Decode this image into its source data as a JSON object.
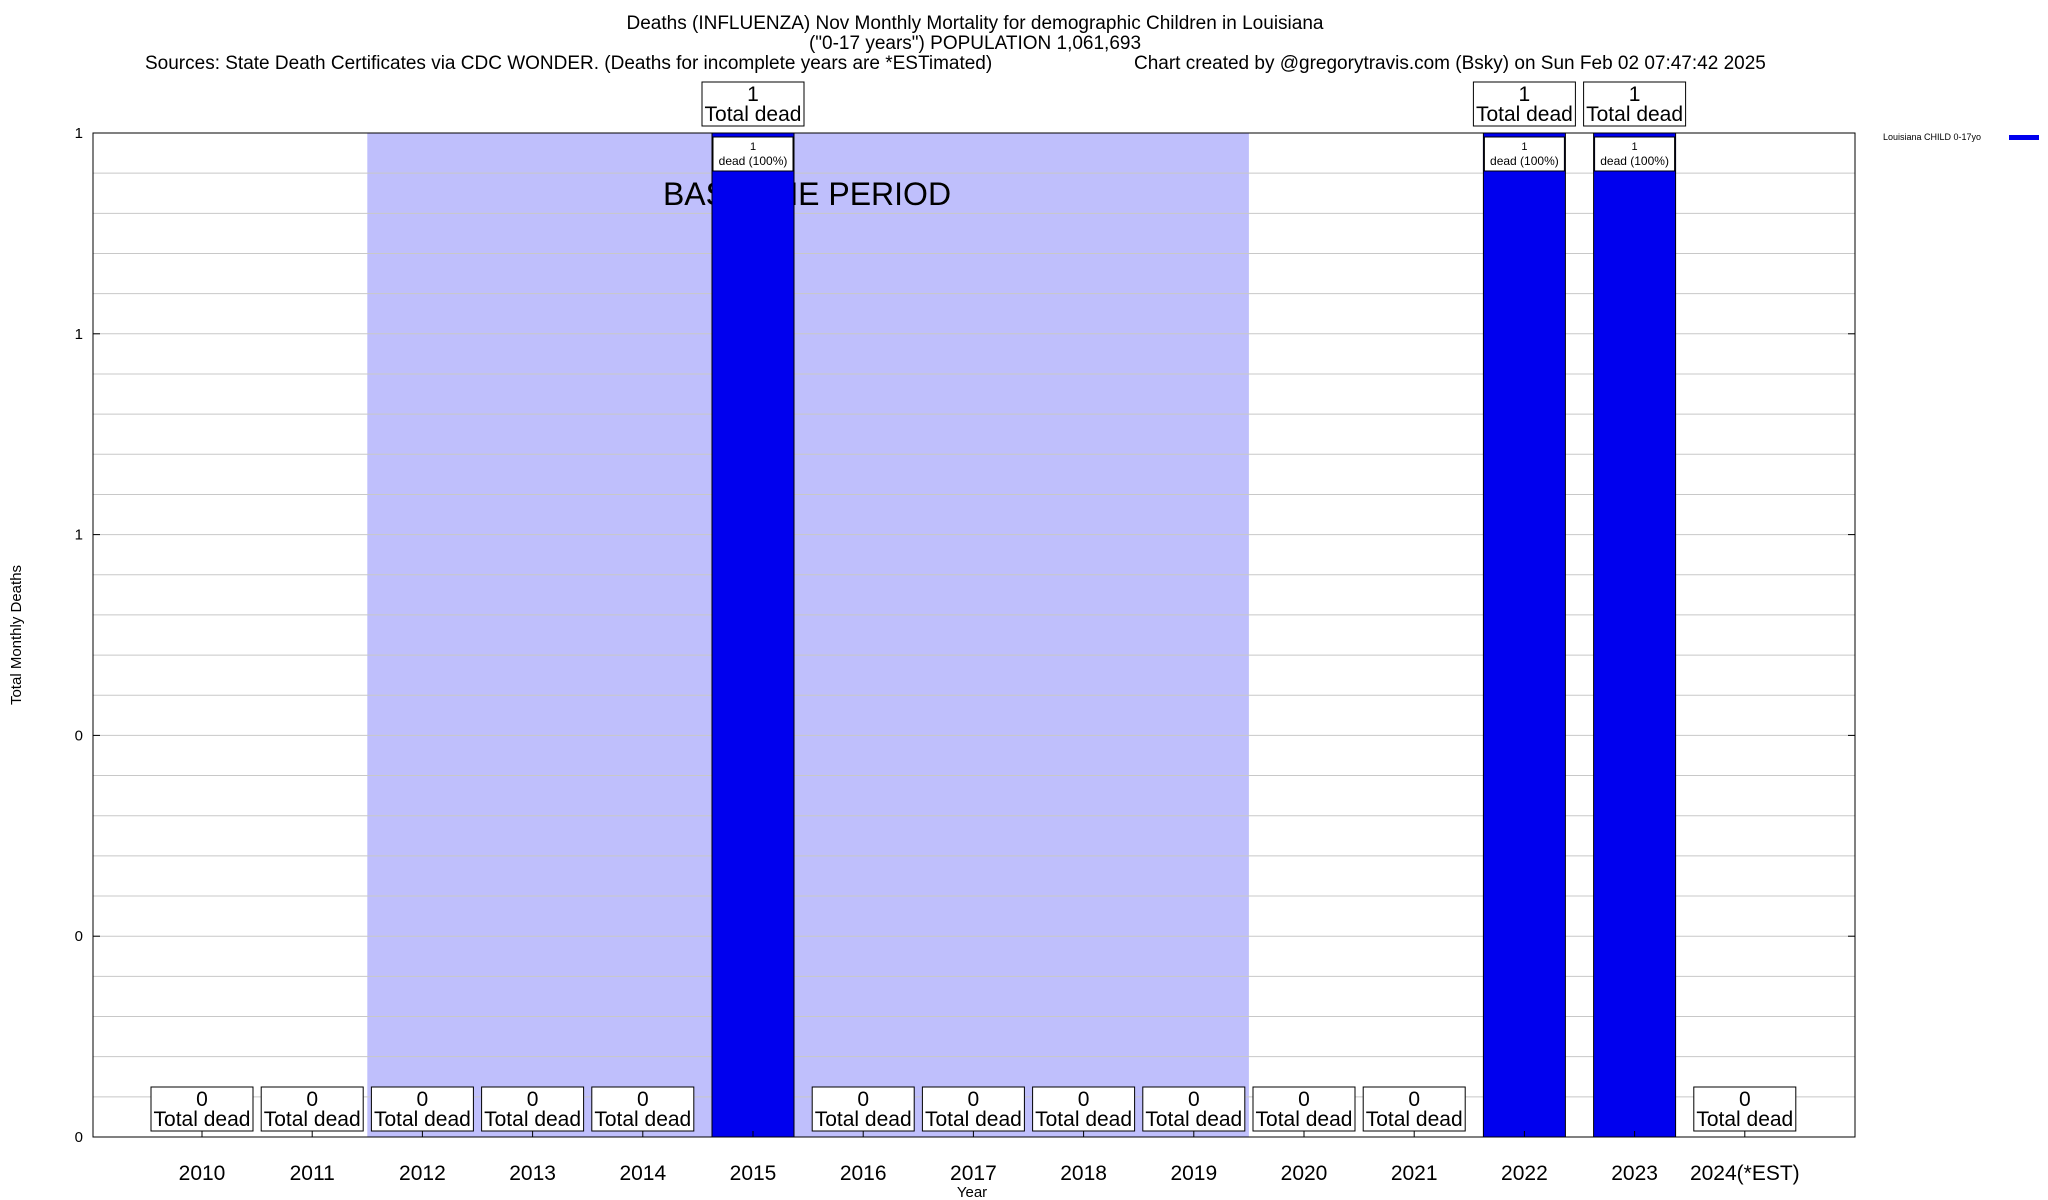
{
  "header": {
    "title_line1": "Deaths (INFLUENZA) Nov Monthly Mortality for demographic Children in Louisiana",
    "title_line2": "(\"0-17 years\") POPULATION 1,061,693",
    "sources": "Sources: State Death Certificates via CDC WONDER. (Deaths for incomplete years are *ESTimated)",
    "credit": "Chart created by @gregorytravis.com (Bsky) on Sun Feb 02 07:47:42 2025"
  },
  "chart_data": {
    "type": "bar",
    "xlabel": "Year",
    "ylabel": "Total Monthly Deaths",
    "ylim": [
      0,
      1
    ],
    "y_tick_labels": [
      "0",
      "0",
      "0",
      "1",
      "1",
      "1"
    ],
    "grid": true,
    "categories": [
      "2010",
      "2011",
      "2012",
      "2013",
      "2014",
      "2015",
      "2016",
      "2017",
      "2018",
      "2019",
      "2020",
      "2021",
      "2022",
      "2023",
      "2024(*EST)"
    ],
    "series": [
      {
        "name": "Louisiana CHILD 0-17yo",
        "color": "#0000ee",
        "values": [
          0,
          0,
          0,
          0,
          0,
          1,
          0,
          0,
          0,
          0,
          0,
          0,
          1,
          1,
          0
        ]
      }
    ],
    "total_label_text": "Total dead",
    "bar_label_text": "dead (100%)",
    "baseline_period": {
      "label": "BASELINE PERIOD",
      "start": "2012",
      "end": "2019",
      "color": "#bfbffc"
    },
    "legend_position": "top-right"
  }
}
